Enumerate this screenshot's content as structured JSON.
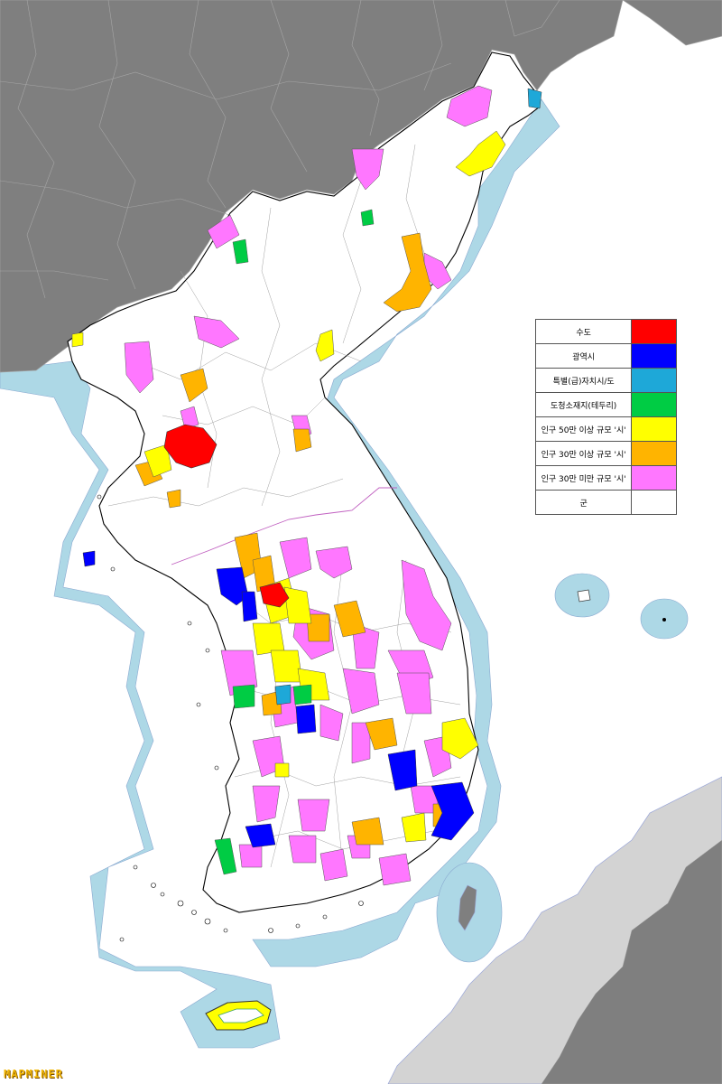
{
  "legend": {
    "items": [
      {
        "label": "수도",
        "color": "#ff0000"
      },
      {
        "label": "광역시",
        "color": "#0000ff"
      },
      {
        "label": "특별(급)자치시/도",
        "color": "#1ea8d8"
      },
      {
        "label": "도청소재지(테두리)",
        "color": "#00cc44"
      },
      {
        "label": "인구 50만 이상 규모 '시'",
        "color": "#ffff00"
      },
      {
        "label": "인구 30만 이상 규모 '시'",
        "color": "#ffb400"
      },
      {
        "label": "인구 30만 미만 규모 '시'",
        "color": "#ff77ff"
      },
      {
        "label": "군",
        "color": "#ffffff"
      }
    ]
  },
  "watermark": "MAPMINER",
  "colors": {
    "sea": "#add8e6",
    "foreign_land": "#7f7f7f",
    "japan_land": "#d3d3d3",
    "korea_land": "#ffffff"
  }
}
